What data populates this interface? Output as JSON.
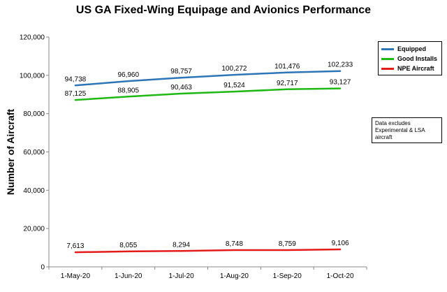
{
  "chart_data": {
    "type": "line",
    "title": "US GA Fixed-Wing Equipage and Avionics Performance",
    "xlabel": "",
    "ylabel": "Number of Aircraft",
    "categories": [
      "1-May-20",
      "1-Jun-20",
      "1-Jul-20",
      "1-Aug-20",
      "1-Sep-20",
      "1-Oct-20"
    ],
    "ylim": [
      0,
      120000
    ],
    "yticks": [
      0,
      20000,
      40000,
      60000,
      80000,
      100000,
      120000
    ],
    "ytick_labels": [
      "0",
      "20,000",
      "40,000",
      "60,000",
      "80,000",
      "100,000",
      "120,000"
    ],
    "grid": false,
    "legend_position": "top-right",
    "series": [
      {
        "name": "Equipped",
        "color": "#2E75B6",
        "values": [
          94738,
          96960,
          98757,
          100272,
          101476,
          102233
        ],
        "labels": [
          "94,738",
          "96,960",
          "98,757",
          "100,272",
          "101,476",
          "102,233"
        ]
      },
      {
        "name": "Good Installs",
        "color": "#1FB814",
        "values": [
          87125,
          88905,
          90463,
          91524,
          92717,
          93127
        ],
        "labels": [
          "87,125",
          "88,905",
          "90,463",
          "91,524",
          "92,717",
          "93,127"
        ]
      },
      {
        "name": "NPE Aircraft",
        "color": "#E31B1B",
        "values": [
          7613,
          8055,
          8294,
          8748,
          8759,
          9106
        ],
        "labels": [
          "7,613",
          "8,055",
          "8,294",
          "8,748",
          "8,759",
          "9,106"
        ]
      }
    ],
    "annotation": "Data excludes Experimental & LSA aircraft"
  }
}
